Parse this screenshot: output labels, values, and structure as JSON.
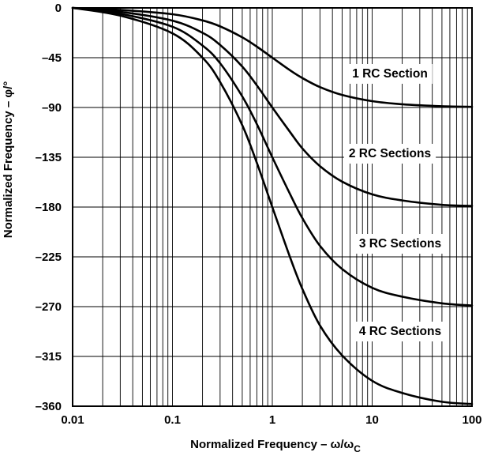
{
  "chart_data": {
    "type": "line",
    "title": "",
    "xlabel_main": "Normalized Frequency – ω/ω",
    "xlabel_sub": "C",
    "ylabel": "Normalized Frequency – φ/°",
    "xscale": "log",
    "xlim": [
      0.01,
      100
    ],
    "ylim": [
      -360,
      0
    ],
    "grid": true,
    "x_ticks": [
      0.01,
      0.1,
      1,
      10,
      100
    ],
    "x_tick_labels": [
      "0.01",
      "0.1",
      "1",
      "10",
      "100"
    ],
    "y_ticks": [
      0,
      -45,
      -90,
      -135,
      -180,
      -225,
      -270,
      -315,
      -360
    ],
    "y_tick_labels": [
      "0",
      "–45",
      "–90",
      "–135",
      "–180",
      "–225",
      "–270",
      "–315",
      "–360"
    ],
    "series": [
      {
        "name": "1 RC Section",
        "x": [
          0.01,
          0.03,
          0.1,
          0.2,
          0.3,
          0.5,
          0.7,
          1,
          1.5,
          2,
          3,
          5,
          10,
          20,
          50,
          100
        ],
        "y": [
          0,
          -1.8,
          -5.7,
          -11.3,
          -16.7,
          -26.6,
          -35,
          -45,
          -56.3,
          -63.4,
          -71.6,
          -78.7,
          -84.3,
          -87.1,
          -88.9,
          -89.4
        ]
      },
      {
        "name": "2 RC Sections",
        "x": [
          0.01,
          0.03,
          0.1,
          0.2,
          0.3,
          0.5,
          0.7,
          1,
          1.5,
          2,
          3,
          5,
          10,
          20,
          50,
          100
        ],
        "y": [
          0,
          -3.5,
          -11.5,
          -22.5,
          -33.5,
          -53,
          -70,
          -90,
          -112,
          -127,
          -143,
          -157,
          -168.5,
          -174,
          -178,
          -179
        ]
      },
      {
        "name": "3 RC Sections",
        "x": [
          0.01,
          0.03,
          0.1,
          0.2,
          0.3,
          0.5,
          0.7,
          1,
          1.5,
          2,
          3,
          5,
          10,
          20,
          50,
          100
        ],
        "y": [
          0,
          -5.3,
          -17,
          -34,
          -50,
          -80,
          -105,
          -135,
          -168,
          -190,
          -215,
          -236,
          -253,
          -261,
          -267,
          -269
        ]
      },
      {
        "name": "4 RC Sections",
        "x": [
          0.01,
          0.03,
          0.1,
          0.2,
          0.3,
          0.5,
          0.7,
          1,
          1.5,
          2,
          3,
          5,
          10,
          20,
          50,
          100
        ],
        "y": [
          0,
          -7,
          -23,
          -45,
          -67,
          -106,
          -140,
          -180,
          -225,
          -254,
          -287,
          -314,
          -337,
          -348,
          -356,
          -358
        ]
      }
    ]
  }
}
